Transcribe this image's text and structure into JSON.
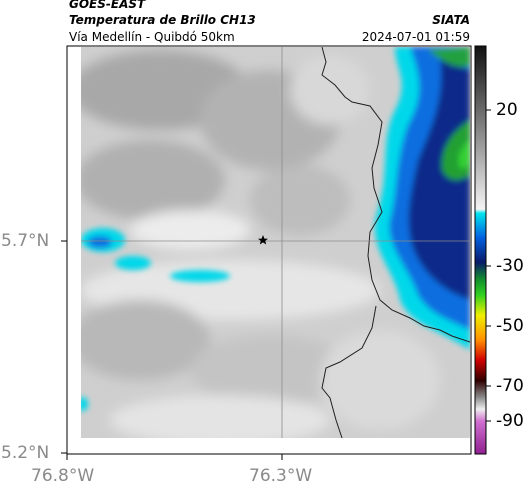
{
  "header": {
    "satellite": "GOES-EAST",
    "product": "Temperatura de Brillo CH13",
    "route": "Vía Medellín - Quibdó 50km",
    "org": "SIATA",
    "timestamp": "2024-07-01 01:59"
  },
  "map": {
    "x_ticks": [
      "76.8°W",
      "76.3°W"
    ],
    "y_ticks": [
      "5.7°N",
      "5.2°N"
    ],
    "marker": "star",
    "marker_color": "#000000"
  },
  "colorbar": {
    "tick_labels": [
      "20",
      "-30",
      "-50",
      "-70",
      "-90"
    ],
    "colors": {
      "warm": "#f2f2f2",
      "gray_top": "#1a1a1a",
      "cyan": "#00e5ee",
      "blue": "#0050d0",
      "navy": "#0a1a6a",
      "green": "#20c020",
      "yellow": "#f0f000",
      "orange": "#ff8000",
      "red": "#d00000",
      "dark": "#101010",
      "magenta": "#c040c0"
    }
  }
}
